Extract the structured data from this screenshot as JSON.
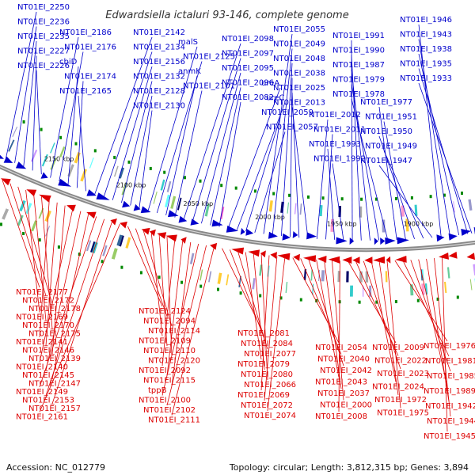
{
  "title": "Edwardsiella ictaluri 93-146, complete genome",
  "footer": {
    "accession": "Accession: NC_012779",
    "summary": "Topology: circular; Length: 3,812,315 bp; Genes: 3,894"
  },
  "colors": {
    "forward": "#0000cc",
    "reverse": "#dd0000",
    "backbone": "#888888",
    "marker": "#008800"
  },
  "kbp_labels": [
    "2150 kbp",
    "2100 kbp",
    "2050 kbp",
    "2000 kbp",
    "1950 kbp",
    "1900 kbp"
  ],
  "forward_genes": [
    "NT01EI_2250",
    "NT01EI_2236",
    "NT01EI_2235",
    "NT01EI_2227",
    "NT01EI_2226",
    "NT01EI_2186",
    "NT01EI_2176",
    "cbiD",
    "NT01EI_2174",
    "NT01EI_2165",
    "NT01EI_2142",
    "NT01EI_2134",
    "NT01EI_2156",
    "NT01EI_2132",
    "NT01EI_2128",
    "NT01EI_2130",
    "malS",
    "NT01EI_2125",
    "anmK",
    "NT01EI_2101",
    "NT01EI_2098",
    "NT01EI_2097",
    "NT01EI_2095",
    "NT01EI_2096",
    "NT01EI_2082",
    "ureA",
    "ureC",
    "NT01EI_2059",
    "NT01EI_2057",
    "NT01EI_2055",
    "NT01EI_2049",
    "NT01EI_2048",
    "NT01EI_2038",
    "NT01EI_2025",
    "NT01EI_2013",
    "NT01EI_2012",
    "NT01EI_2011",
    "NT01EI_1993",
    "NT01EI_1992",
    "NT01EI_1991",
    "NT01EI_1990",
    "NT01EI_1987",
    "NT01EI_1979",
    "NT01EI_1978",
    "NT01EI_1977",
    "NT01EI_1951",
    "NT01EI_1950",
    "NT01EI_1949",
    "NT01EI_1947",
    "NT01EI_1946",
    "NT01EI_1943",
    "NT01EI_1938",
    "NT01EI_1935",
    "NT01EI_1933"
  ],
  "reverse_genes": [
    "NT01EI_2177",
    "NT01EI_2172",
    "NT01EI_2178",
    "NT01EI_2169",
    "NT01EI_2170",
    "NT01EI_2175",
    "NT01EI_2141",
    "NT01EI_2146",
    "NT01EI_2139",
    "NT01EI_2140",
    "NT01EI_2145",
    "NT01EI_2147",
    "NT01EI_2149",
    "NT01EI_2153",
    "NT01EI_2157",
    "NT01EI_2161",
    "NT01EI_2124",
    "NT01EI_2094",
    "NT01EI_2114",
    "NT01EI_2109",
    "NT01EI_2110",
    "NT01EI_2120",
    "NT01EI_2092",
    "NT01EI_2115",
    "tppB",
    "NT01EI_2100",
    "NT01EI_2102",
    "NT01EI_2111",
    "NT01EI_2081",
    "NT01EI_2084",
    "NT01EI_2077",
    "NT01EI_2079",
    "NT01EI_2080",
    "NT01EI_2066",
    "NT01EI_2069",
    "NT01EI_2072",
    "NT01EI_2074",
    "NT01EI_2054",
    "NT01EI_2040",
    "NT01EI_2042",
    "NT01EI_2043",
    "NT01EI_2037",
    "NT01EI_2000",
    "NT01EI_2008",
    "NT01EI_2009",
    "NT01EI_2022",
    "NT01EI_2023",
    "NT01EI_2024",
    "NT01EI_1972",
    "NT01EI_1975",
    "NT01EI_1976",
    "NT01EI_1981",
    "NT01EI_1985",
    "NT01EI_1989",
    "NT01EI_1942",
    "NT01EI_1944",
    "NT01EI_1945",
    "NT01EI_1948",
    "NT01EI_1954",
    "NT01EI_1955",
    "NT01EI_1956"
  ]
}
